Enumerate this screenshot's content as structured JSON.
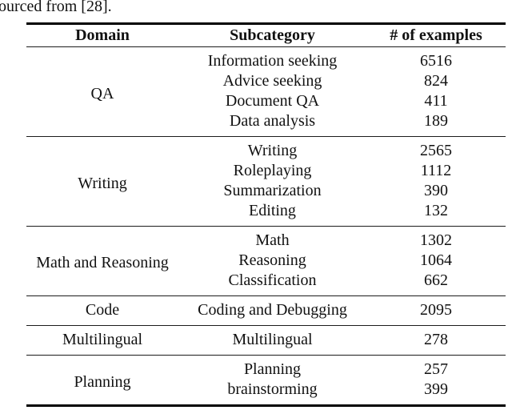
{
  "page": {
    "caption_fragment": "ourced from [28]."
  },
  "colors": {
    "text": "#111111",
    "rule_thin": "#1c1c1c",
    "rule_thick": "#000000",
    "background": "#ffffff"
  },
  "table": {
    "columns": [
      "Domain",
      "Subcategory",
      "# of examples"
    ],
    "sections": [
      {
        "domain": "QA",
        "rows": [
          {
            "subcategory": "Information seeking",
            "count": "6516"
          },
          {
            "subcategory": "Advice seeking",
            "count": "824"
          },
          {
            "subcategory": "Document QA",
            "count": "411"
          },
          {
            "subcategory": "Data analysis",
            "count": "189"
          }
        ]
      },
      {
        "domain": "Writing",
        "rows": [
          {
            "subcategory": "Writing",
            "count": "2565"
          },
          {
            "subcategory": "Roleplaying",
            "count": "1112"
          },
          {
            "subcategory": "Summarization",
            "count": "390"
          },
          {
            "subcategory": "Editing",
            "count": "132"
          }
        ]
      },
      {
        "domain": "Math and Reasoning",
        "rows": [
          {
            "subcategory": "Math",
            "count": "1302"
          },
          {
            "subcategory": "Reasoning",
            "count": "1064"
          },
          {
            "subcategory": "Classification",
            "count": "662"
          }
        ]
      },
      {
        "domain": "Code",
        "rows": [
          {
            "subcategory": "Coding and Debugging",
            "count": "2095"
          }
        ]
      },
      {
        "domain": "Multilingual",
        "rows": [
          {
            "subcategory": "Multilingual",
            "count": "278"
          }
        ]
      },
      {
        "domain": "Planning",
        "rows": [
          {
            "subcategory": "Planning",
            "count": "257"
          },
          {
            "subcategory": "brainstorming",
            "count": "399"
          }
        ]
      }
    ]
  }
}
